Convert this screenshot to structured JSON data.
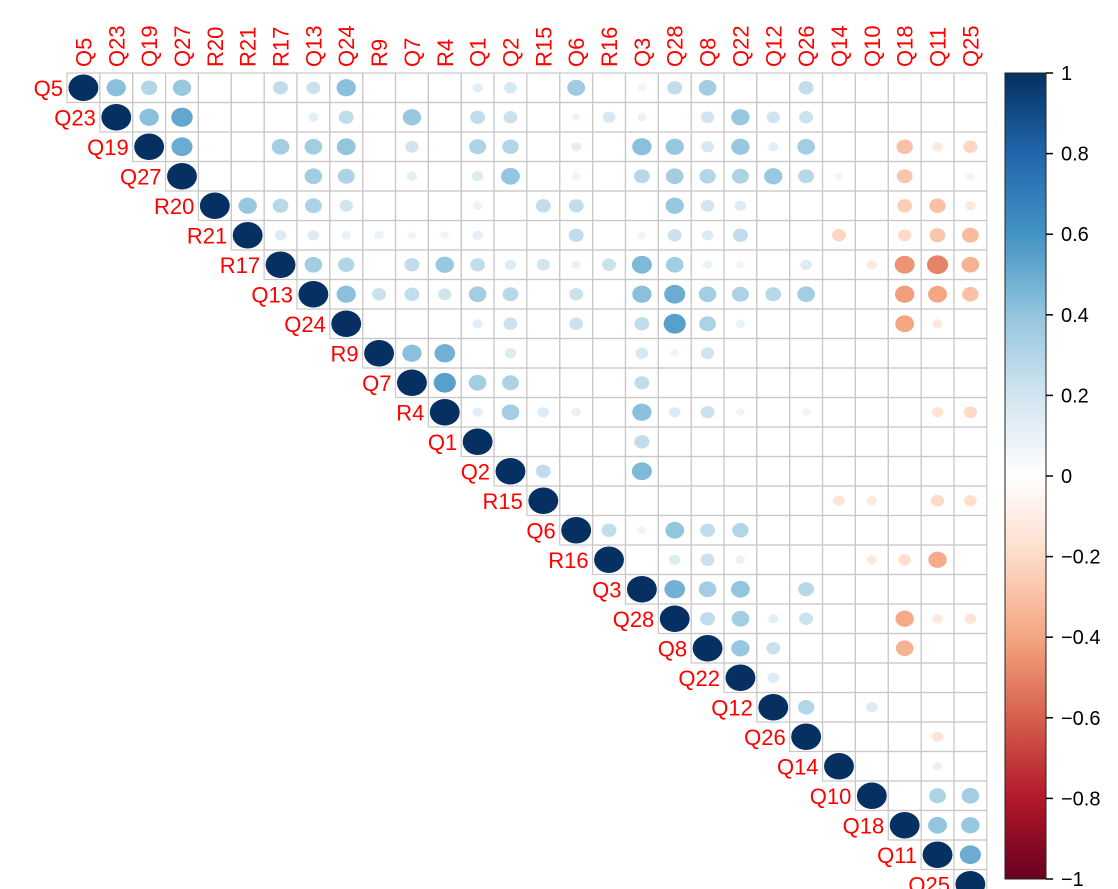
{
  "chart_data": {
    "type": "heatmap",
    "subtype": "correlation-matrix-upper-triangle-circles",
    "variables": [
      "Q5",
      "Q23",
      "Q19",
      "Q27",
      "R20",
      "R21",
      "R17",
      "Q13",
      "Q24",
      "R9",
      "Q7",
      "R4",
      "Q1",
      "Q2",
      "R15",
      "Q6",
      "R16",
      "Q3",
      "Q28",
      "Q8",
      "Q22",
      "Q12",
      "Q26",
      "Q14",
      "Q10",
      "Q18",
      "Q11",
      "Q25"
    ],
    "label_color": "#ff0000",
    "colorbar": {
      "min": -1,
      "max": 1,
      "ticks": [
        1,
        0.8,
        0.6,
        0.4,
        0.2,
        0,
        -0.2,
        -0.4,
        -0.6,
        -0.8,
        -1
      ],
      "tick_labels": [
        "1",
        "0.8",
        "0.6",
        "0.4",
        "0.2",
        "0",
        "−0.2",
        "−0.4",
        "−0.6",
        "−0.8",
        "−1"
      ],
      "colors": [
        "#67001f",
        "#b2182b",
        "#d6604d",
        "#f4a582",
        "#fddbc7",
        "#ffffff",
        "#d1e5f0",
        "#92c5de",
        "#4393c3",
        "#2166ac",
        "#053061"
      ]
    },
    "correlations": [
      [
        "Q5",
        "Q23",
        0.42
      ],
      [
        "Q5",
        "Q19",
        0.3
      ],
      [
        "Q5",
        "Q27",
        0.38
      ],
      [
        "Q5",
        "R17",
        0.25
      ],
      [
        "Q5",
        "Q13",
        0.22
      ],
      [
        "Q5",
        "Q24",
        0.42
      ],
      [
        "Q5",
        "Q6",
        0.36
      ],
      [
        "Q5",
        "Q28",
        0.25
      ],
      [
        "Q5",
        "Q8",
        0.35
      ],
      [
        "Q5",
        "Q26",
        0.25
      ],
      [
        "Q5",
        "Q1",
        0.12
      ],
      [
        "Q5",
        "Q2",
        0.18
      ],
      [
        "Q5",
        "Q3",
        0.08
      ],
      [
        "Q23",
        "Q19",
        0.42
      ],
      [
        "Q23",
        "Q27",
        0.52
      ],
      [
        "Q23",
        "Q13",
        0.12
      ],
      [
        "Q23",
        "Q24",
        0.25
      ],
      [
        "Q23",
        "Q7",
        0.38
      ],
      [
        "Q23",
        "Q1",
        0.25
      ],
      [
        "Q23",
        "Q2",
        0.22
      ],
      [
        "Q23",
        "Q6",
        0.08
      ],
      [
        "Q23",
        "R16",
        0.18
      ],
      [
        "Q23",
        "Q3",
        0.1
      ],
      [
        "Q23",
        "Q8",
        0.2
      ],
      [
        "Q23",
        "Q22",
        0.38
      ],
      [
        "Q23",
        "Q12",
        0.2
      ],
      [
        "Q23",
        "Q26",
        0.22
      ],
      [
        "Q19",
        "Q27",
        0.5
      ],
      [
        "Q19",
        "R17",
        0.35
      ],
      [
        "Q19",
        "Q13",
        0.35
      ],
      [
        "Q19",
        "Q24",
        0.4
      ],
      [
        "Q19",
        "Q7",
        0.2
      ],
      [
        "Q19",
        "Q1",
        0.32
      ],
      [
        "Q19",
        "Q2",
        0.3
      ],
      [
        "Q19",
        "Q6",
        0.12
      ],
      [
        "Q19",
        "Q3",
        0.42
      ],
      [
        "Q19",
        "Q28",
        0.38
      ],
      [
        "Q19",
        "Q8",
        0.18
      ],
      [
        "Q19",
        "Q22",
        0.38
      ],
      [
        "Q19",
        "Q12",
        0.12
      ],
      [
        "Q19",
        "Q26",
        0.35
      ],
      [
        "Q19",
        "Q18",
        -0.3
      ],
      [
        "Q19",
        "Q11",
        -0.12
      ],
      [
        "Q19",
        "Q25",
        -0.22
      ],
      [
        "Q27",
        "Q13",
        0.35
      ],
      [
        "Q27",
        "Q24",
        0.32
      ],
      [
        "Q27",
        "Q7",
        0.12
      ],
      [
        "Q27",
        "Q1",
        0.15
      ],
      [
        "Q27",
        "Q2",
        0.4
      ],
      [
        "Q27",
        "Q6",
        0.08
      ],
      [
        "Q27",
        "Q3",
        0.28
      ],
      [
        "Q27",
        "Q28",
        0.35
      ],
      [
        "Q27",
        "Q8",
        0.3
      ],
      [
        "Q27",
        "Q22",
        0.32
      ],
      [
        "Q27",
        "Q12",
        0.38
      ],
      [
        "Q27",
        "Q26",
        0.28
      ],
      [
        "Q27",
        "Q14",
        0.08
      ],
      [
        "Q27",
        "Q18",
        -0.28
      ],
      [
        "Q27",
        "Q25",
        -0.08
      ],
      [
        "R20",
        "R21",
        0.38
      ],
      [
        "R20",
        "R17",
        0.28
      ],
      [
        "R20",
        "Q13",
        0.32
      ],
      [
        "R20",
        "Q24",
        0.2
      ],
      [
        "R20",
        "Q1",
        0.1
      ],
      [
        "R20",
        "R15",
        0.25
      ],
      [
        "R20",
        "Q6",
        0.25
      ],
      [
        "R20",
        "Q28",
        0.38
      ],
      [
        "R20",
        "Q8",
        0.2
      ],
      [
        "R20",
        "Q22",
        0.15
      ],
      [
        "R20",
        "Q18",
        -0.25
      ],
      [
        "R20",
        "Q11",
        -0.3
      ],
      [
        "R20",
        "Q25",
        -0.12
      ],
      [
        "R21",
        "R17",
        0.15
      ],
      [
        "R21",
        "Q13",
        0.15
      ],
      [
        "R21",
        "Q24",
        0.1
      ],
      [
        "R21",
        "R9",
        0.1
      ],
      [
        "R21",
        "Q7",
        0.08
      ],
      [
        "R21",
        "R4",
        0.08
      ],
      [
        "R21",
        "Q1",
        0.12
      ],
      [
        "R21",
        "Q6",
        0.25
      ],
      [
        "R21",
        "Q3",
        0.08
      ],
      [
        "R21",
        "Q28",
        0.22
      ],
      [
        "R21",
        "Q8",
        0.15
      ],
      [
        "R21",
        "Q22",
        0.25
      ],
      [
        "R21",
        "Q14",
        -0.22
      ],
      [
        "R21",
        "Q18",
        -0.2
      ],
      [
        "R21",
        "Q11",
        -0.28
      ],
      [
        "R21",
        "Q25",
        -0.32
      ],
      [
        "R17",
        "Q13",
        0.35
      ],
      [
        "R17",
        "Q24",
        0.3
      ],
      [
        "R17",
        "Q7",
        0.25
      ],
      [
        "R17",
        "R4",
        0.38
      ],
      [
        "R17",
        "Q1",
        0.25
      ],
      [
        "R17",
        "Q2",
        0.15
      ],
      [
        "R17",
        "R15",
        0.2
      ],
      [
        "R17",
        "Q6",
        0.1
      ],
      [
        "R17",
        "R16",
        0.22
      ],
      [
        "R17",
        "Q3",
        0.45
      ],
      [
        "R17",
        "Q28",
        0.35
      ],
      [
        "R17",
        "Q8",
        0.1
      ],
      [
        "R17",
        "Q22",
        0.08
      ],
      [
        "R17",
        "Q26",
        0.15
      ],
      [
        "R17",
        "Q10",
        -0.12
      ],
      [
        "R17",
        "Q18",
        -0.45
      ],
      [
        "R17",
        "Q11",
        -0.5
      ],
      [
        "R17",
        "Q25",
        -0.35
      ],
      [
        "Q13",
        "Q24",
        0.42
      ],
      [
        "Q13",
        "R9",
        0.22
      ],
      [
        "Q13",
        "Q7",
        0.25
      ],
      [
        "Q13",
        "R4",
        0.2
      ],
      [
        "Q13",
        "Q1",
        0.35
      ],
      [
        "Q13",
        "Q2",
        0.28
      ],
      [
        "Q13",
        "Q6",
        0.22
      ],
      [
        "Q13",
        "Q3",
        0.42
      ],
      [
        "Q13",
        "Q28",
        0.5
      ],
      [
        "Q13",
        "Q8",
        0.35
      ],
      [
        "Q13",
        "Q22",
        0.32
      ],
      [
        "Q13",
        "Q12",
        0.28
      ],
      [
        "Q13",
        "Q26",
        0.35
      ],
      [
        "Q13",
        "Q18",
        -0.42
      ],
      [
        "Q13",
        "Q11",
        -0.4
      ],
      [
        "Q13",
        "Q25",
        -0.3
      ],
      [
        "Q24",
        "Q1",
        0.12
      ],
      [
        "Q24",
        "Q2",
        0.22
      ],
      [
        "Q24",
        "Q6",
        0.22
      ],
      [
        "Q24",
        "Q3",
        0.25
      ],
      [
        "Q24",
        "Q28",
        0.55
      ],
      [
        "Q24",
        "Q8",
        0.32
      ],
      [
        "Q24",
        "Q22",
        0.1
      ],
      [
        "Q24",
        "Q18",
        -0.4
      ],
      [
        "Q24",
        "Q11",
        -0.12
      ],
      [
        "R9",
        "Q7",
        0.42
      ],
      [
        "R9",
        "R4",
        0.48
      ],
      [
        "R9",
        "Q2",
        0.15
      ],
      [
        "R9",
        "Q3",
        0.18
      ],
      [
        "R9",
        "Q28",
        0.08
      ],
      [
        "R9",
        "Q8",
        0.2
      ],
      [
        "Q7",
        "R4",
        0.55
      ],
      [
        "Q7",
        "Q1",
        0.35
      ],
      [
        "Q7",
        "Q2",
        0.32
      ],
      [
        "Q7",
        "Q3",
        0.25
      ],
      [
        "R4",
        "Q1",
        0.12
      ],
      [
        "R4",
        "Q2",
        0.35
      ],
      [
        "R4",
        "R15",
        0.15
      ],
      [
        "R4",
        "Q6",
        0.1
      ],
      [
        "R4",
        "Q3",
        0.42
      ],
      [
        "R4",
        "Q28",
        0.15
      ],
      [
        "R4",
        "Q8",
        0.22
      ],
      [
        "R4",
        "Q22",
        0.08
      ],
      [
        "R4",
        "Q26",
        0.08
      ],
      [
        "R4",
        "Q11",
        -0.15
      ],
      [
        "R4",
        "Q25",
        -0.2
      ],
      [
        "Q1",
        "Q3",
        0.25
      ],
      [
        "Q2",
        "R15",
        0.25
      ],
      [
        "Q2",
        "Q3",
        0.45
      ],
      [
        "R15",
        "Q14",
        -0.15
      ],
      [
        "R15",
        "Q10",
        -0.12
      ],
      [
        "R15",
        "Q11",
        -0.2
      ],
      [
        "R15",
        "Q25",
        -0.18
      ],
      [
        "Q6",
        "R16",
        0.25
      ],
      [
        "Q6",
        "Q3",
        0.08
      ],
      [
        "Q6",
        "Q28",
        0.4
      ],
      [
        "Q6",
        "Q8",
        0.25
      ],
      [
        "Q6",
        "Q22",
        0.3
      ],
      [
        "R16",
        "Q28",
        0.15
      ],
      [
        "R16",
        "Q8",
        0.22
      ],
      [
        "R16",
        "Q22",
        0.1
      ],
      [
        "R16",
        "Q10",
        -0.12
      ],
      [
        "R16",
        "Q18",
        -0.18
      ],
      [
        "R16",
        "Q11",
        -0.38
      ],
      [
        "Q3",
        "Q28",
        0.48
      ],
      [
        "Q3",
        "Q8",
        0.35
      ],
      [
        "Q3",
        "Q22",
        0.4
      ],
      [
        "Q3",
        "Q26",
        0.28
      ],
      [
        "Q28",
        "Q8",
        0.25
      ],
      [
        "Q28",
        "Q22",
        0.35
      ],
      [
        "Q28",
        "Q12",
        0.12
      ],
      [
        "Q28",
        "Q26",
        0.22
      ],
      [
        "Q28",
        "Q18",
        -0.38
      ],
      [
        "Q28",
        "Q11",
        -0.12
      ],
      [
        "Q28",
        "Q25",
        -0.15
      ],
      [
        "Q8",
        "Q22",
        0.38
      ],
      [
        "Q8",
        "Q12",
        0.22
      ],
      [
        "Q8",
        "Q18",
        -0.35
      ],
      [
        "Q22",
        "Q12",
        0.15
      ],
      [
        "Q12",
        "Q26",
        0.3
      ],
      [
        "Q12",
        "Q10",
        0.15
      ],
      [
        "Q26",
        "Q11",
        -0.15
      ],
      [
        "Q14",
        "Q11",
        0.1
      ],
      [
        "Q10",
        "Q11",
        0.32
      ],
      [
        "Q10",
        "Q25",
        0.35
      ],
      [
        "Q18",
        "Q11",
        0.4
      ],
      [
        "Q18",
        "Q25",
        0.38
      ],
      [
        "Q11",
        "Q25",
        0.5
      ]
    ]
  }
}
